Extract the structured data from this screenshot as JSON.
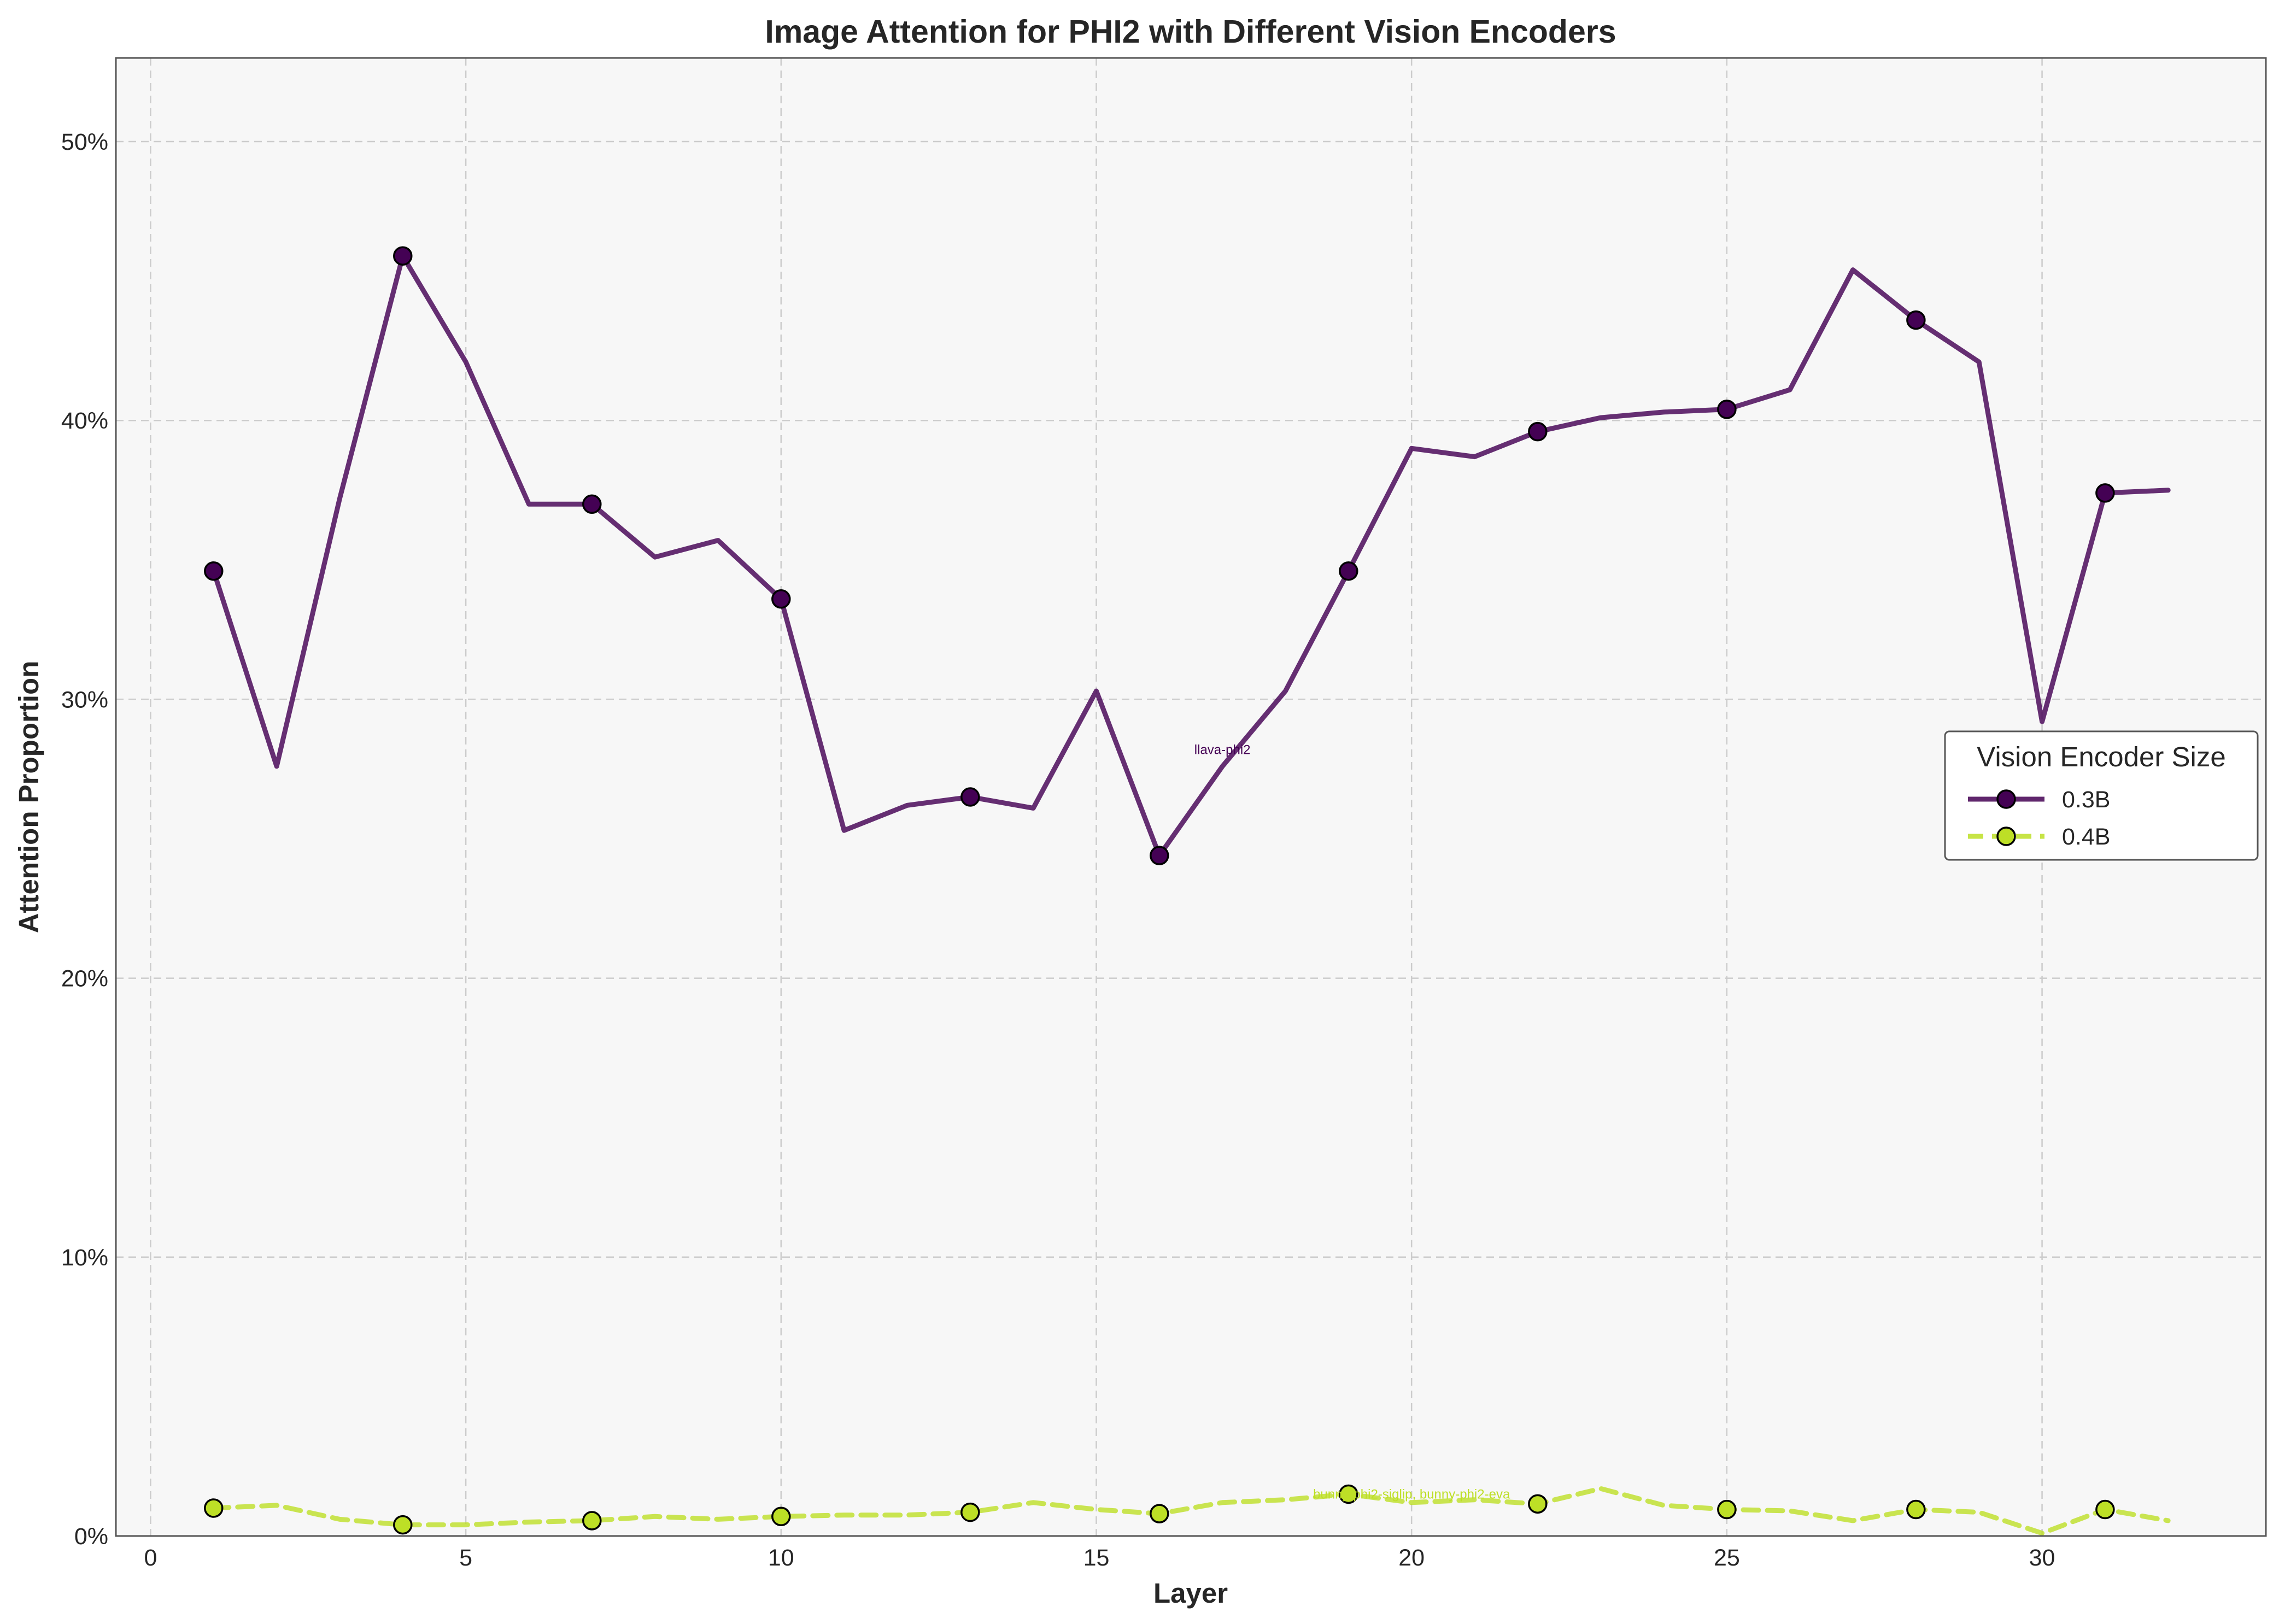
{
  "chart_data": {
    "type": "line",
    "title": "Image Attention for PHI2 with Different Vision Encoders",
    "xlabel": "Layer",
    "ylabel": "Attention Proportion",
    "xlim": [
      -0.55,
      33.55
    ],
    "ylim": [
      0,
      53
    ],
    "x_ticks": [
      0,
      5,
      10,
      15,
      20,
      25,
      30
    ],
    "y_ticks": [
      0,
      10,
      20,
      30,
      40,
      50
    ],
    "y_tick_labels": [
      "0%",
      "10%",
      "20%",
      "30%",
      "40%",
      "50%"
    ],
    "grid": true,
    "legend": {
      "title": "Vision Encoder Size",
      "position": "center-right"
    },
    "x": [
      1,
      2,
      3,
      4,
      5,
      6,
      7,
      8,
      9,
      10,
      11,
      12,
      13,
      14,
      15,
      16,
      17,
      18,
      19,
      20,
      21,
      22,
      23,
      24,
      25,
      26,
      27,
      28,
      29,
      30,
      31,
      32
    ],
    "marker_every": 3,
    "series": [
      {
        "name": "0.3B",
        "color": "#440154",
        "line_style": "solid",
        "marker_color": "#440154",
        "values": [
          34.6,
          27.6,
          37.2,
          45.9,
          42.1,
          37.0,
          37.0,
          35.1,
          35.7,
          33.6,
          25.3,
          26.2,
          26.5,
          26.1,
          30.3,
          24.4,
          27.6,
          30.3,
          34.6,
          39.0,
          38.7,
          39.6,
          40.1,
          40.3,
          40.4,
          41.1,
          45.4,
          43.6,
          42.1,
          29.2,
          37.4,
          37.5
        ]
      },
      {
        "name": "0.4B",
        "color": "#bddf26",
        "line_style": "dashed",
        "marker_color": "#bddf26",
        "values": [
          1.0,
          1.1,
          0.6,
          0.4,
          0.4,
          0.5,
          0.55,
          0.7,
          0.6,
          0.7,
          0.75,
          0.75,
          0.85,
          1.2,
          0.95,
          0.8,
          1.2,
          1.3,
          1.5,
          1.2,
          1.3,
          1.15,
          1.7,
          1.1,
          0.95,
          0.9,
          0.55,
          0.95,
          0.85,
          0.1,
          0.95,
          0.55
        ]
      }
    ],
    "annotations": [
      {
        "text": "llava-phi2",
        "x": 17.0,
        "y": 28.2,
        "series": 0
      },
      {
        "text": "bunny-phi2-siglip, bunny-phi2-eva",
        "x": 20.0,
        "y": 1.5,
        "series": 1
      }
    ]
  }
}
